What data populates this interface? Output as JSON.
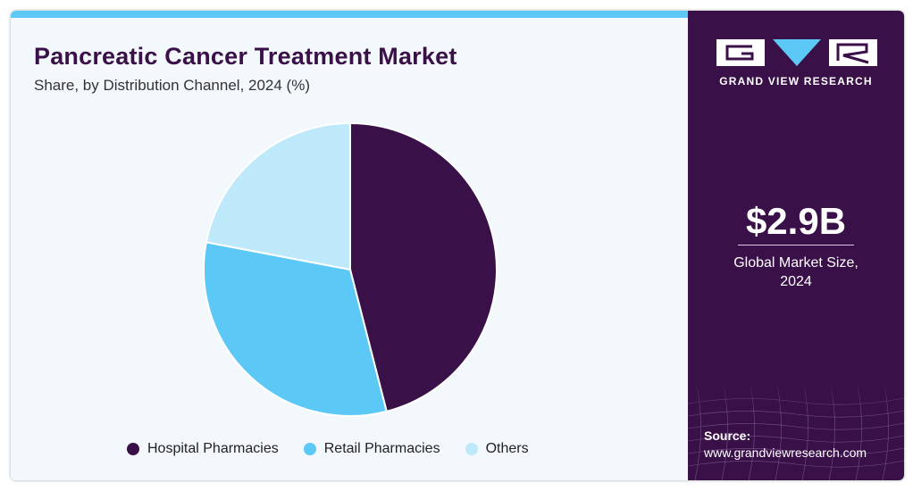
{
  "header": {
    "title": "Pancreatic Cancer Treatment Market",
    "subtitle": "Share, by Distribution Channel, 2024 (%)"
  },
  "chart_data": {
    "type": "pie",
    "title": "Pancreatic Cancer Treatment Market",
    "subtitle": "Share, by Distribution Channel, 2024 (%)",
    "categories": [
      "Hospital Pharmacies",
      "Retail Pharmacies",
      "Others"
    ],
    "values": [
      46,
      32,
      22
    ],
    "colors": [
      "#3a1048",
      "#5bc8f5",
      "#bde9fa"
    ],
    "legend": "bottom"
  },
  "sidebar": {
    "brand": "GRAND VIEW RESEARCH",
    "market_value": "$2.9B",
    "market_label_line1": "Global Market Size,",
    "market_label_line2": "2024",
    "source_label": "Source:",
    "source_url": "www.grandviewresearch.com"
  },
  "colors": {
    "accent": "#5bc8f5",
    "brand": "#3a1048"
  }
}
